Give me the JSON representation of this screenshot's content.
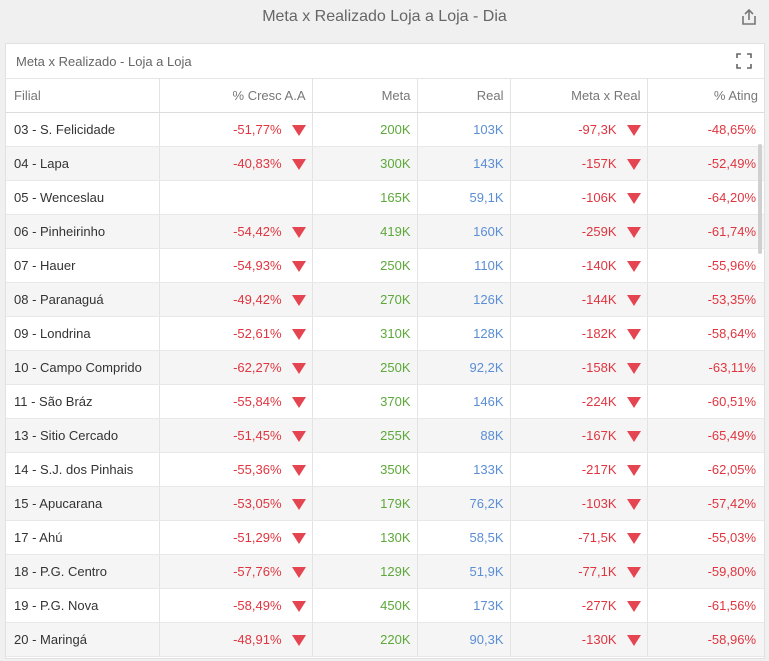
{
  "window_title": "Meta x Realizado Loja a Loja - Dia",
  "card_title": "Meta x Realizado - Loja a Loja",
  "columns": [
    "Filial",
    "% Cresc A.A",
    "Meta",
    "Real",
    "Meta x Real",
    "% Ating"
  ],
  "colors": {
    "negative": "#e0353f",
    "meta": "#5da83a",
    "real": "#5a8ed6",
    "arrow": "#e44550"
  },
  "icons": {
    "export": "export-icon",
    "expand": "expand-icon",
    "trend": "down-triangle-icon"
  },
  "rows": [
    {
      "filial": "03 - S. Felicidade",
      "cresc": "-51,77%",
      "meta": "200K",
      "real": "103K",
      "meta_x_real": "-97,3K",
      "ating": "-48,65%"
    },
    {
      "filial": "04 - Lapa",
      "cresc": "-40,83%",
      "meta": "300K",
      "real": "143K",
      "meta_x_real": "-157K",
      "ating": "-52,49%"
    },
    {
      "filial": "05 - Wenceslau",
      "cresc": "",
      "meta": "165K",
      "real": "59,1K",
      "meta_x_real": "-106K",
      "ating": "-64,20%"
    },
    {
      "filial": "06 - Pinheirinho",
      "cresc": "-54,42%",
      "meta": "419K",
      "real": "160K",
      "meta_x_real": "-259K",
      "ating": "-61,74%"
    },
    {
      "filial": "07 - Hauer",
      "cresc": "-54,93%",
      "meta": "250K",
      "real": "110K",
      "meta_x_real": "-140K",
      "ating": "-55,96%"
    },
    {
      "filial": "08 - Paranaguá",
      "cresc": "-49,42%",
      "meta": "270K",
      "real": "126K",
      "meta_x_real": "-144K",
      "ating": "-53,35%"
    },
    {
      "filial": "09 - Londrina",
      "cresc": "-52,61%",
      "meta": "310K",
      "real": "128K",
      "meta_x_real": "-182K",
      "ating": "-58,64%"
    },
    {
      "filial": "10 - Campo Comprido",
      "cresc": "-62,27%",
      "meta": "250K",
      "real": "92,2K",
      "meta_x_real": "-158K",
      "ating": "-63,11%"
    },
    {
      "filial": "11 - São Bráz",
      "cresc": "-55,84%",
      "meta": "370K",
      "real": "146K",
      "meta_x_real": "-224K",
      "ating": "-60,51%"
    },
    {
      "filial": "13 - Sitio Cercado",
      "cresc": "-51,45%",
      "meta": "255K",
      "real": "88K",
      "meta_x_real": "-167K",
      "ating": "-65,49%"
    },
    {
      "filial": "14 - S.J. dos Pinhais",
      "cresc": "-55,36%",
      "meta": "350K",
      "real": "133K",
      "meta_x_real": "-217K",
      "ating": "-62,05%"
    },
    {
      "filial": "15 - Apucarana",
      "cresc": "-53,05%",
      "meta": "179K",
      "real": "76,2K",
      "meta_x_real": "-103K",
      "ating": "-57,42%"
    },
    {
      "filial": "17 - Ahú",
      "cresc": "-51,29%",
      "meta": "130K",
      "real": "58,5K",
      "meta_x_real": "-71,5K",
      "ating": "-55,03%"
    },
    {
      "filial": "18 - P.G. Centro",
      "cresc": "-57,76%",
      "meta": "129K",
      "real": "51,9K",
      "meta_x_real": "-77,1K",
      "ating": "-59,80%"
    },
    {
      "filial": "19 - P.G. Nova",
      "cresc": "-58,49%",
      "meta": "450K",
      "real": "173K",
      "meta_x_real": "-277K",
      "ating": "-61,56%"
    },
    {
      "filial": "20 - Maringá",
      "cresc": "-48,91%",
      "meta": "220K",
      "real": "90,3K",
      "meta_x_real": "-130K",
      "ating": "-58,96%"
    }
  ]
}
